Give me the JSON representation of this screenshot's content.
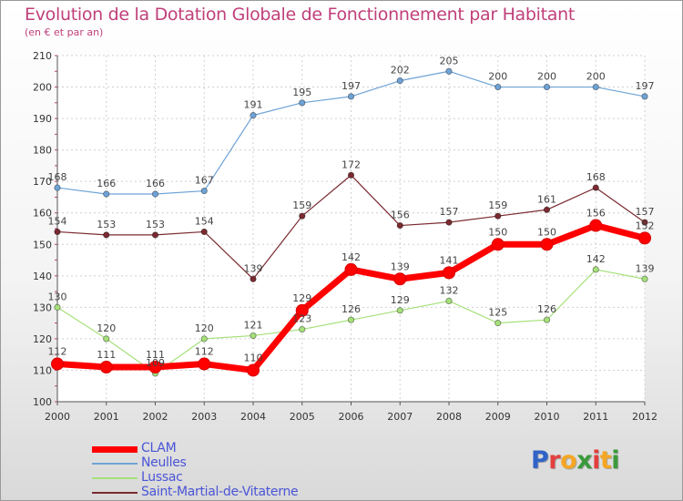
{
  "header": {
    "title": "Evolution de la Dotation Globale de Fonctionnement par Habitant",
    "subtitle": "(en € et par an)"
  },
  "logo": {
    "text": "Proxiti",
    "colors": [
      "#2f63c8",
      "#e33f3f",
      "#f5a623",
      "#3a9a3a",
      "#e33f3f",
      "#f5a623",
      "#3a9a3a"
    ]
  },
  "colors": {
    "CLAM": "#ff0000",
    "Neulles": "#6ea3d6",
    "Lussac": "#a5e07a",
    "Saint-Martial-de-Vitaterne": "#7a2a30"
  },
  "chart_data": {
    "type": "line",
    "x": [
      2000,
      2001,
      2002,
      2003,
      2004,
      2005,
      2006,
      2007,
      2008,
      2009,
      2010,
      2011,
      2012
    ],
    "ylim": [
      100,
      210
    ],
    "yticks": [
      100,
      110,
      120,
      130,
      140,
      150,
      160,
      170,
      180,
      190,
      200,
      210
    ],
    "grid": true,
    "legend_position": "bottom-left",
    "series": [
      {
        "name": "CLAM",
        "values": [
          112,
          111,
          111,
          112,
          110,
          129,
          142,
          139,
          141,
          150,
          150,
          156,
          152
        ]
      },
      {
        "name": "Neulles",
        "values": [
          168,
          166,
          166,
          167,
          191,
          195,
          197,
          202,
          205,
          200,
          200,
          200,
          197
        ]
      },
      {
        "name": "Lussac",
        "values": [
          130,
          120,
          109,
          120,
          121,
          123,
          126,
          129,
          132,
          125,
          126,
          142,
          139
        ]
      },
      {
        "name": "Saint-Martial-de-Vitaterne",
        "values": [
          154,
          153,
          153,
          154,
          139,
          159,
          172,
          156,
          157,
          159,
          161,
          168,
          157
        ]
      }
    ]
  }
}
